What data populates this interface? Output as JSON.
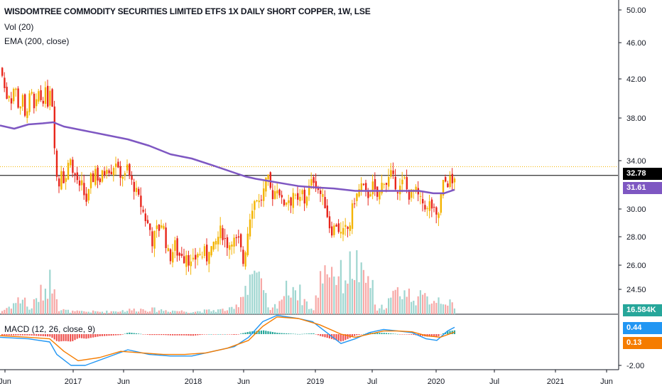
{
  "legend": {
    "title": "WISDOMTREE COMMODITY SECURITIES LIMITED ETFS 1X DAILY SHORT COPPER, 1W, LSE",
    "vol": "Vol (20)",
    "ema": "EMA (200, close)",
    "macd": "MACD (12, 26, close, 9)"
  },
  "badges": {
    "last_price": "32.78",
    "ema": "31.61",
    "volume": "16.584K",
    "macd": "0.44",
    "signal": "0.13"
  },
  "colors": {
    "up": "#f4b400",
    "down": "#e8261c",
    "ema": "#7e57c2",
    "macd": "#2196f3",
    "signal": "#f57c00",
    "hist_up": "#26a69a",
    "hist_down": "#ef5350",
    "last_price_line": "#000000",
    "dotted_line": "#f4b400"
  },
  "chart_data": {
    "type": "candlestick",
    "price_axis": {
      "ticks": [
        "50.00",
        "46.00",
        "42.00",
        "38.00",
        "34.00",
        "30.00",
        "28.00",
        "26.00",
        "24.50"
      ],
      "tick_values": [
        50,
        46,
        42,
        38,
        34,
        30,
        28,
        26,
        24.5
      ]
    },
    "macd_axis": {
      "ticks": [
        "-2.00"
      ],
      "tick_values": [
        -2
      ]
    },
    "x_ticks": [
      "Jun",
      "2017",
      "Jun",
      "2018",
      "Jun",
      "2019",
      "Jul",
      "2020",
      "Jul",
      "2021",
      "Jun"
    ],
    "price_path": [
      [
        0,
        43.2
      ],
      [
        4,
        41.5
      ],
      [
        8,
        40.0
      ],
      [
        10,
        40.8
      ],
      [
        13,
        40.2
      ],
      [
        16,
        39.5
      ],
      [
        19,
        41.8
      ],
      [
        22,
        40.5
      ],
      [
        26,
        38.5
      ],
      [
        30,
        40.5
      ],
      [
        34,
        38.0
      ],
      [
        40,
        40.0
      ],
      [
        43,
        40.8
      ],
      [
        46,
        38.6
      ],
      [
        50,
        39.5
      ],
      [
        54,
        41.0
      ],
      [
        58,
        39.2
      ],
      [
        62,
        41.0
      ],
      [
        66,
        39.5
      ],
      [
        70,
        41.5
      ],
      [
        74,
        38.0
      ],
      [
        76,
        35.0
      ],
      [
        79,
        32.5
      ],
      [
        82,
        32.0
      ],
      [
        85,
        33.5
      ],
      [
        90,
        32.0
      ],
      [
        94,
        33.5
      ],
      [
        98,
        34.5
      ],
      [
        102,
        32.5
      ],
      [
        106,
        33.0
      ],
      [
        110,
        31.5
      ],
      [
        114,
        32.0
      ],
      [
        118,
        31.0
      ],
      [
        122,
        30.5
      ],
      [
        126,
        32.5
      ],
      [
        130,
        32.5
      ],
      [
        134,
        33.5
      ],
      [
        138,
        32.0
      ],
      [
        142,
        32.8
      ],
      [
        146,
        33.0
      ],
      [
        150,
        33.8
      ],
      [
        154,
        33.0
      ],
      [
        158,
        33.5
      ],
      [
        162,
        34.0
      ],
      [
        166,
        32.8
      ],
      [
        170,
        33.0
      ],
      [
        174,
        32.5
      ],
      [
        178,
        33.5
      ],
      [
        182,
        32.5
      ],
      [
        186,
        32.0
      ],
      [
        190,
        31.5
      ],
      [
        193,
        31.0
      ],
      [
        196,
        30.5
      ],
      [
        199,
        30.0
      ],
      [
        202,
        29.5
      ],
      [
        206,
        29.0
      ],
      [
        210,
        28.5
      ],
      [
        214,
        27.5
      ],
      [
        218,
        28.5
      ],
      [
        222,
        28.5
      ],
      [
        226,
        29.0
      ],
      [
        230,
        28.5
      ],
      [
        234,
        27.0
      ],
      [
        238,
        26.5
      ],
      [
        242,
        27.0
      ],
      [
        246,
        27.5
      ],
      [
        250,
        26.5
      ],
      [
        254,
        27.0
      ],
      [
        258,
        26.5
      ],
      [
        262,
        27.0
      ],
      [
        266,
        26.0
      ],
      [
        270,
        26.0
      ],
      [
        274,
        26.5
      ],
      [
        278,
        27.0
      ],
      [
        282,
        26.5
      ],
      [
        286,
        27.0
      ],
      [
        290,
        26.5
      ],
      [
        294,
        27.5
      ],
      [
        298,
        27.0
      ],
      [
        302,
        27.5
      ],
      [
        306,
        28.0
      ],
      [
        310,
        28.5
      ],
      [
        314,
        28.0
      ],
      [
        318,
        27.5
      ],
      [
        322,
        27.5
      ],
      [
        326,
        28.0
      ],
      [
        330,
        27.5
      ],
      [
        334,
        27.8
      ],
      [
        338,
        27.0
      ],
      [
        342,
        26.0
      ],
      [
        345,
        27.5
      ],
      [
        348,
        28.5
      ],
      [
        352,
        30.0
      ],
      [
        356,
        30.5
      ],
      [
        360,
        31.0
      ],
      [
        364,
        30.5
      ],
      [
        368,
        31.0
      ],
      [
        372,
        32.0
      ],
      [
        376,
        32.5
      ],
      [
        380,
        31.5
      ],
      [
        384,
        31.0
      ],
      [
        388,
        32.0
      ],
      [
        392,
        31.5
      ],
      [
        396,
        30.5
      ],
      [
        400,
        30.5
      ],
      [
        404,
        31.0
      ],
      [
        408,
        30.5
      ],
      [
        412,
        31.5
      ],
      [
        416,
        30.5
      ],
      [
        420,
        30.5
      ],
      [
        424,
        31.5
      ],
      [
        428,
        30.5
      ],
      [
        432,
        31.5
      ],
      [
        436,
        32.0
      ],
      [
        440,
        32.5
      ],
      [
        444,
        32.0
      ],
      [
        448,
        31.5
      ],
      [
        452,
        31.0
      ],
      [
        456,
        30.5
      ],
      [
        460,
        29.5
      ],
      [
        464,
        28.5
      ],
      [
        468,
        28.5
      ],
      [
        472,
        29.0
      ],
      [
        476,
        28.5
      ],
      [
        480,
        28.0
      ],
      [
        484,
        28.5
      ],
      [
        488,
        28.5
      ],
      [
        492,
        29.0
      ],
      [
        496,
        30.5
      ],
      [
        500,
        31.0
      ],
      [
        504,
        31.5
      ],
      [
        508,
        32.0
      ],
      [
        512,
        31.5
      ],
      [
        516,
        31.0
      ],
      [
        520,
        31.5
      ],
      [
        524,
        32.0
      ],
      [
        528,
        31.0
      ],
      [
        532,
        31.0
      ],
      [
        536,
        32.0
      ],
      [
        540,
        32.5
      ],
      [
        544,
        32.0
      ],
      [
        548,
        33.0
      ],
      [
        552,
        32.5
      ],
      [
        556,
        32.0
      ],
      [
        560,
        31.5
      ],
      [
        564,
        32.0
      ],
      [
        568,
        32.5
      ],
      [
        572,
        31.5
      ],
      [
        576,
        31.0
      ],
      [
        580,
        31.5
      ],
      [
        584,
        31.5
      ],
      [
        588,
        31.0
      ],
      [
        592,
        30.5
      ],
      [
        596,
        30.5
      ],
      [
        600,
        29.8
      ],
      [
        604,
        30.5
      ],
      [
        608,
        30.0
      ],
      [
        612,
        29.5
      ],
      [
        615,
        29.0
      ],
      [
        618,
        30.5
      ],
      [
        621,
        31.5
      ],
      [
        624,
        32.5
      ],
      [
        628,
        32.0
      ],
      [
        632,
        32.5
      ],
      [
        636,
        32.0
      ],
      [
        639,
        32.8
      ]
    ],
    "ema_path": [
      [
        0,
        37.3
      ],
      [
        20,
        37.0
      ],
      [
        40,
        37.4
      ],
      [
        60,
        37.5
      ],
      [
        75,
        37.6
      ],
      [
        90,
        37.2
      ],
      [
        120,
        36.8
      ],
      [
        150,
        36.4
      ],
      [
        180,
        36.0
      ],
      [
        210,
        35.4
      ],
      [
        240,
        34.6
      ],
      [
        270,
        34.2
      ],
      [
        300,
        33.6
      ],
      [
        330,
        33.0
      ],
      [
        345,
        32.7
      ],
      [
        360,
        32.5
      ],
      [
        380,
        32.3
      ],
      [
        400,
        32.1
      ],
      [
        420,
        31.9
      ],
      [
        440,
        31.8
      ],
      [
        470,
        31.7
      ],
      [
        500,
        31.5
      ],
      [
        530,
        31.5
      ],
      [
        560,
        31.5
      ],
      [
        590,
        31.5
      ],
      [
        610,
        31.3
      ],
      [
        625,
        31.3
      ],
      [
        640,
        31.6
      ]
    ],
    "volume_path": [
      [
        0,
        0.05
      ],
      [
        35,
        0.35
      ],
      [
        38,
        0.05
      ],
      [
        78,
        0.8
      ],
      [
        80,
        0.1
      ],
      [
        100,
        0.05
      ],
      [
        150,
        0.05
      ],
      [
        200,
        0.1
      ],
      [
        270,
        0.05
      ],
      [
        330,
        0.1
      ],
      [
        355,
        0.9
      ],
      [
        380,
        0.05
      ],
      [
        410,
        0.6
      ],
      [
        440,
        0.05
      ],
      [
        455,
        1.0
      ],
      [
        465,
        0.9
      ],
      [
        480,
        0.7
      ],
      [
        500,
        1.0
      ],
      [
        510,
        0.6
      ],
      [
        520,
        0.7
      ],
      [
        530,
        0.05
      ],
      [
        565,
        0.5
      ],
      [
        570,
        0.4
      ],
      [
        595,
        0.3
      ],
      [
        625,
        0.3
      ],
      [
        640,
        0.1
      ]
    ],
    "macd_path": [
      [
        0,
        -0.2
      ],
      [
        40,
        -0.3
      ],
      [
        70,
        -0.5
      ],
      [
        80,
        -1.3
      ],
      [
        100,
        -2.0
      ],
      [
        120,
        -2.0
      ],
      [
        150,
        -1.5
      ],
      [
        180,
        -1.0
      ],
      [
        210,
        -1.3
      ],
      [
        240,
        -1.4
      ],
      [
        270,
        -1.4
      ],
      [
        300,
        -1.1
      ],
      [
        330,
        -0.8
      ],
      [
        350,
        -0.2
      ],
      [
        370,
        0.8
      ],
      [
        390,
        1.2
      ],
      [
        420,
        1.0
      ],
      [
        440,
        0.8
      ],
      [
        460,
        0.1
      ],
      [
        480,
        -0.6
      ],
      [
        500,
        -0.3
      ],
      [
        520,
        0.1
      ],
      [
        540,
        0.3
      ],
      [
        560,
        0.2
      ],
      [
        580,
        0.1
      ],
      [
        600,
        -0.3
      ],
      [
        615,
        -0.4
      ],
      [
        630,
        0.2
      ],
      [
        640,
        0.44
      ]
    ],
    "signal_path": [
      [
        0,
        -0.1
      ],
      [
        40,
        -0.2
      ],
      [
        70,
        -0.3
      ],
      [
        90,
        -1.1
      ],
      [
        110,
        -1.7
      ],
      [
        140,
        -1.5
      ],
      [
        170,
        -1.1
      ],
      [
        200,
        -1.2
      ],
      [
        230,
        -1.3
      ],
      [
        260,
        -1.3
      ],
      [
        290,
        -1.2
      ],
      [
        320,
        -0.9
      ],
      [
        350,
        -0.4
      ],
      [
        370,
        0.5
      ],
      [
        390,
        1.1
      ],
      [
        420,
        1.0
      ],
      [
        450,
        0.6
      ],
      [
        480,
        0.0
      ],
      [
        500,
        -0.2
      ],
      [
        520,
        0.0
      ],
      [
        540,
        0.2
      ],
      [
        560,
        0.2
      ],
      [
        580,
        0.15
      ],
      [
        600,
        -0.1
      ],
      [
        620,
        -0.2
      ],
      [
        640,
        0.13
      ]
    ]
  }
}
